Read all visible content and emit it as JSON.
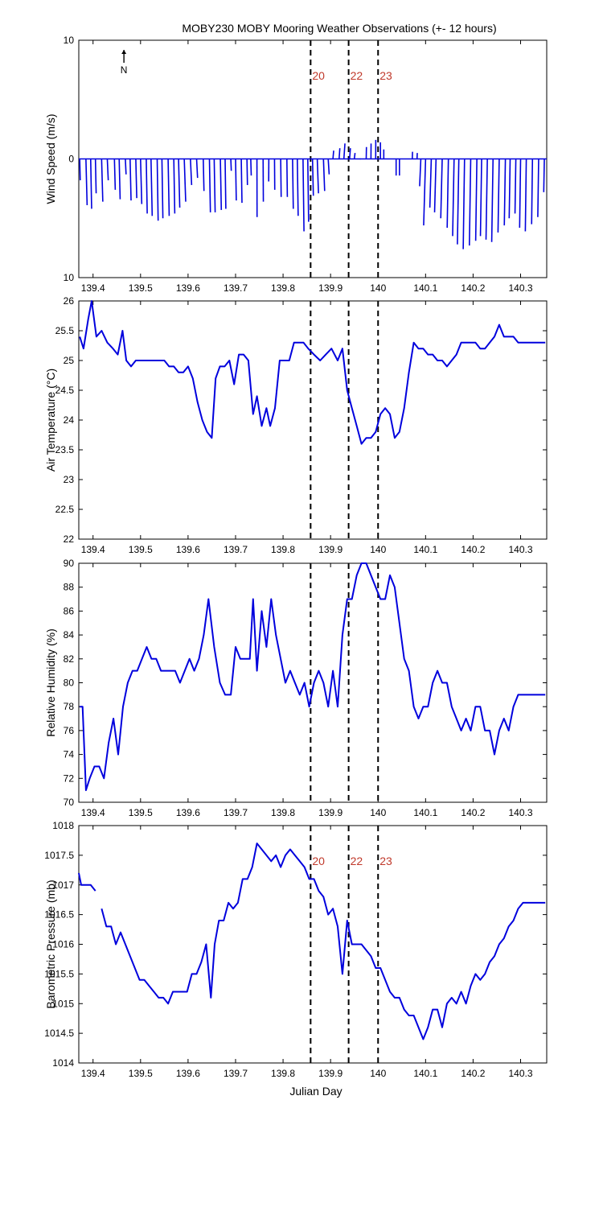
{
  "title": "MOBY230 MOBY Mooring Weather Observations (+- 12 hours)",
  "xlabel": "Julian Day",
  "north_label": "N",
  "series_color": "#0000dd",
  "event_color": "#c0392b",
  "x_ticks": [
    "139.4",
    "139.5",
    "139.6",
    "139.7",
    "139.8",
    "139.9",
    "140",
    "140.1",
    "140.2",
    "140.3"
  ],
  "events": [
    {
      "x": 139.858,
      "label": "20"
    },
    {
      "x": 139.938,
      "label": "22"
    },
    {
      "x": 140.0,
      "label": "23"
    }
  ],
  "chart_data": [
    {
      "type": "quiver",
      "ylabel": "Wind Speed (m/s)",
      "xlim": [
        139.37,
        140.355
      ],
      "ylim": [
        -10,
        10
      ],
      "y_ticks": [
        "10",
        "0",
        "10"
      ],
      "event_labels_shown": true,
      "vectors": [
        {
          "x": 139.372,
          "u": 0.02,
          "v": -1.8
        },
        {
          "x": 139.385,
          "u": 0.05,
          "v": -3.9
        },
        {
          "x": 139.395,
          "u": 0.04,
          "v": -4.2
        },
        {
          "x": 139.405,
          "u": 0.03,
          "v": -2.9
        },
        {
          "x": 139.418,
          "u": 0.05,
          "v": -3.6
        },
        {
          "x": 139.43,
          "u": 0.04,
          "v": -1.8
        },
        {
          "x": 139.445,
          "u": 0.035,
          "v": -2.6
        },
        {
          "x": 139.455,
          "u": 0.04,
          "v": -3.4
        },
        {
          "x": 139.468,
          "u": 0.03,
          "v": -1.3
        },
        {
          "x": 139.478,
          "u": 0.04,
          "v": -3.5
        },
        {
          "x": 139.49,
          "u": 0.04,
          "v": -3.3
        },
        {
          "x": 139.5,
          "u": 0.05,
          "v": -3.8
        },
        {
          "x": 139.512,
          "u": 0.04,
          "v": -4.6
        },
        {
          "x": 139.522,
          "u": 0.05,
          "v": -4.8
        },
        {
          "x": 139.535,
          "u": 0.04,
          "v": -5.2
        },
        {
          "x": 139.545,
          "u": 0.04,
          "v": -5.0
        },
        {
          "x": 139.558,
          "u": 0.045,
          "v": -4.8
        },
        {
          "x": 139.57,
          "u": 0.04,
          "v": -4.6
        },
        {
          "x": 139.58,
          "u": 0.05,
          "v": -4.1
        },
        {
          "x": 139.592,
          "u": 0.06,
          "v": -3.6
        },
        {
          "x": 139.605,
          "u": 0.05,
          "v": -2.2
        },
        {
          "x": 139.618,
          "u": 0.04,
          "v": -1.6
        },
        {
          "x": 139.632,
          "u": 0.03,
          "v": -2.7
        },
        {
          "x": 139.645,
          "u": 0.04,
          "v": -4.5
        },
        {
          "x": 139.655,
          "u": 0.04,
          "v": -4.5
        },
        {
          "x": 139.668,
          "u": 0.04,
          "v": -4.3
        },
        {
          "x": 139.678,
          "u": 0.03,
          "v": -4.2
        },
        {
          "x": 139.69,
          "u": 0.02,
          "v": -1.0
        },
        {
          "x": 139.7,
          "u": 0.03,
          "v": -3.5
        },
        {
          "x": 139.712,
          "u": 0.03,
          "v": -3.7
        },
        {
          "x": 139.724,
          "u": 0.02,
          "v": -2.2
        },
        {
          "x": 139.732,
          "u": 0.02,
          "v": -1.4
        },
        {
          "x": 139.745,
          "u": 0.005,
          "v": -4.9
        },
        {
          "x": 139.758,
          "u": 0.01,
          "v": -3.6
        },
        {
          "x": 139.77,
          "u": -0.005,
          "v": -1.9
        },
        {
          "x": 139.782,
          "u": 0.01,
          "v": -2.6
        },
        {
          "x": 139.795,
          "u": 0.02,
          "v": -3.2
        },
        {
          "x": 139.808,
          "u": 0.02,
          "v": -3.2
        },
        {
          "x": 139.82,
          "u": 0.03,
          "v": -4.2
        },
        {
          "x": 139.83,
          "u": 0.035,
          "v": -4.8
        },
        {
          "x": 139.842,
          "u": 0.04,
          "v": -6.1
        },
        {
          "x": 139.852,
          "u": 0.035,
          "v": -5.3
        },
        {
          "x": 139.862,
          "u": 0.035,
          "v": -3.1
        },
        {
          "x": 139.872,
          "u": 0.05,
          "v": -2.9
        },
        {
          "x": 139.885,
          "u": 0.05,
          "v": -2.7
        },
        {
          "x": 139.895,
          "u": 0.04,
          "v": -1.3
        },
        {
          "x": 139.905,
          "u": 0.03,
          "v": 0.7
        },
        {
          "x": 139.918,
          "u": 0.03,
          "v": 0.9
        },
        {
          "x": 139.928,
          "u": 0.045,
          "v": 1.3
        },
        {
          "x": 139.94,
          "u": 0.035,
          "v": 0.9
        },
        {
          "x": 139.95,
          "u": 0.03,
          "v": 0.5
        },
        {
          "x": 139.962,
          "u": 0.02,
          "v": 0.0
        },
        {
          "x": 139.975,
          "u": 0.01,
          "v": 1.0
        },
        {
          "x": 139.985,
          "u": 0.005,
          "v": 1.3
        },
        {
          "x": 139.995,
          "u": 0.003,
          "v": 1.6
        },
        {
          "x": 140.005,
          "u": 0.0,
          "v": 1.4
        },
        {
          "x": 140.012,
          "u": 0.0,
          "v": 0.8
        },
        {
          "x": 140.038,
          "u": 0.0,
          "v": -1.4
        },
        {
          "x": 140.045,
          "u": 0.0,
          "v": -1.4
        },
        {
          "x": 140.072,
          "u": 0.01,
          "v": 0.6
        },
        {
          "x": 140.082,
          "u": 0.01,
          "v": 0.5
        },
        {
          "x": 140.09,
          "u": -0.05,
          "v": -2.3
        },
        {
          "x": 140.1,
          "u": -0.08,
          "v": -5.6
        },
        {
          "x": 140.112,
          "u": -0.06,
          "v": -4.1
        },
        {
          "x": 140.122,
          "u": -0.06,
          "v": -4.5
        },
        {
          "x": 140.135,
          "u": -0.06,
          "v": -5.0
        },
        {
          "x": 140.148,
          "u": -0.05,
          "v": -5.8
        },
        {
          "x": 140.16,
          "u": -0.06,
          "v": -6.5
        },
        {
          "x": 140.17,
          "u": -0.06,
          "v": -7.2
        },
        {
          "x": 140.182,
          "u": -0.055,
          "v": -7.6
        },
        {
          "x": 140.195,
          "u": -0.055,
          "v": -7.3
        },
        {
          "x": 140.208,
          "u": -0.05,
          "v": -6.9
        },
        {
          "x": 140.218,
          "u": -0.05,
          "v": -6.5
        },
        {
          "x": 140.23,
          "u": -0.055,
          "v": -6.8
        },
        {
          "x": 140.242,
          "u": -0.055,
          "v": -7.0
        },
        {
          "x": 140.255,
          "u": -0.05,
          "v": -6.2
        },
        {
          "x": 140.268,
          "u": -0.045,
          "v": -5.6
        },
        {
          "x": 140.278,
          "u": -0.04,
          "v": -5.0
        },
        {
          "x": 140.29,
          "u": -0.035,
          "v": -4.6
        },
        {
          "x": 140.3,
          "u": -0.04,
          "v": -5.8
        },
        {
          "x": 140.312,
          "u": -0.04,
          "v": -6.1
        },
        {
          "x": 140.325,
          "u": -0.035,
          "v": -5.5
        },
        {
          "x": 140.338,
          "u": -0.035,
          "v": -4.9
        },
        {
          "x": 140.35,
          "u": -0.025,
          "v": -2.8
        }
      ]
    },
    {
      "type": "line",
      "ylabel": "Air Temperature (°C)",
      "xlim": [
        139.37,
        140.355
      ],
      "ylim": [
        22,
        26
      ],
      "y_ticks": [
        "22",
        "22.5",
        "23",
        "23.5",
        "24",
        "24.5",
        "25",
        "25.5",
        "26"
      ],
      "event_labels_shown": false,
      "x": [
        139.372,
        139.38,
        139.39,
        139.397,
        139.407,
        139.418,
        139.43,
        139.442,
        139.452,
        139.462,
        139.47,
        139.48,
        139.49,
        139.5,
        139.51,
        139.52,
        139.53,
        139.54,
        139.55,
        139.56,
        139.57,
        139.58,
        139.59,
        139.6,
        139.61,
        139.62,
        139.63,
        139.64,
        139.65,
        139.658,
        139.667,
        139.677,
        139.687,
        139.697,
        139.707,
        139.717,
        139.727,
        139.737,
        139.745,
        139.755,
        139.765,
        139.773,
        139.783,
        139.793,
        139.803,
        139.813,
        139.823,
        139.833,
        139.843,
        139.853,
        139.865,
        139.878,
        139.89,
        139.902,
        139.915,
        139.925,
        139.935,
        139.945,
        139.955,
        139.965,
        139.975,
        139.985,
        139.995,
        140.005,
        140.015,
        140.025,
        140.035,
        140.045,
        140.055,
        140.065,
        140.075,
        140.085,
        140.095,
        140.105,
        140.115,
        140.125,
        140.135,
        140.145,
        140.155,
        140.165,
        140.175,
        140.185,
        140.195,
        140.205,
        140.215,
        140.225,
        140.235,
        140.245,
        140.255,
        140.265,
        140.275,
        140.285,
        140.295,
        140.305,
        140.315,
        140.325,
        140.335,
        140.345,
        140.352
      ],
      "y": [
        25.4,
        25.2,
        25.7,
        26.0,
        25.4,
        25.5,
        25.3,
        25.2,
        25.1,
        25.5,
        25.0,
        24.9,
        25.0,
        25.0,
        25.0,
        25.0,
        25.0,
        25.0,
        25.0,
        24.9,
        24.9,
        24.8,
        24.8,
        24.9,
        24.7,
        24.3,
        24.0,
        23.8,
        23.7,
        24.7,
        24.9,
        24.9,
        25.0,
        24.6,
        25.1,
        25.1,
        25.0,
        24.1,
        24.4,
        23.9,
        24.2,
        23.9,
        24.2,
        25.0,
        25.0,
        25.0,
        25.3,
        25.3,
        25.3,
        25.2,
        25.1,
        25.0,
        25.1,
        25.2,
        25.0,
        25.2,
        24.5,
        24.2,
        23.9,
        23.6,
        23.7,
        23.7,
        23.8,
        24.1,
        24.2,
        24.1,
        23.7,
        23.8,
        24.2,
        24.8,
        25.3,
        25.2,
        25.2,
        25.1,
        25.1,
        25.0,
        25.0,
        24.9,
        25.0,
        25.1,
        25.3,
        25.3,
        25.3,
        25.3,
        25.2,
        25.2,
        25.3,
        25.4,
        25.6,
        25.4,
        25.4,
        25.4,
        25.3,
        25.3,
        25.3,
        25.3,
        25.3,
        25.3,
        25.3
      ]
    },
    {
      "type": "line",
      "ylabel": "Relative Humidity (%)",
      "xlim": [
        139.37,
        140.355
      ],
      "ylim": [
        70,
        90
      ],
      "y_ticks": [
        "70",
        "72",
        "74",
        "76",
        "78",
        "80",
        "82",
        "84",
        "86",
        "88",
        "90"
      ],
      "event_labels_shown": false,
      "x": [
        139.372,
        139.378,
        139.385,
        139.393,
        139.403,
        139.413,
        139.423,
        139.433,
        139.443,
        139.453,
        139.463,
        139.473,
        139.483,
        139.493,
        139.503,
        139.513,
        139.523,
        139.533,
        139.543,
        139.553,
        139.563,
        139.573,
        139.583,
        139.593,
        139.603,
        139.613,
        139.623,
        139.633,
        139.643,
        139.655,
        139.667,
        139.678,
        139.69,
        139.7,
        139.71,
        139.72,
        139.73,
        139.737,
        139.745,
        139.755,
        139.765,
        139.775,
        139.785,
        139.795,
        139.805,
        139.815,
        139.825,
        139.835,
        139.845,
        139.855,
        139.865,
        139.875,
        139.885,
        139.895,
        139.905,
        139.915,
        139.925,
        139.935,
        139.945,
        139.955,
        139.965,
        139.975,
        139.985,
        139.995,
        140.005,
        140.015,
        140.025,
        140.035,
        140.045,
        140.055,
        140.065,
        140.075,
        140.085,
        140.095,
        140.105,
        140.115,
        140.125,
        140.135,
        140.145,
        140.155,
        140.165,
        140.175,
        140.185,
        140.195,
        140.205,
        140.215,
        140.225,
        140.235,
        140.245,
        140.255,
        140.265,
        140.275,
        140.285,
        140.295,
        140.305,
        140.315,
        140.325,
        140.335,
        140.345,
        140.352
      ],
      "y": [
        78,
        78,
        71,
        72,
        73,
        73,
        72,
        75,
        77,
        74,
        78,
        80,
        81,
        81,
        82,
        83,
        82,
        82,
        81,
        81,
        81,
        81,
        80,
        81,
        82,
        81,
        82,
        84,
        87,
        83,
        80,
        79,
        79,
        83,
        82,
        82,
        82,
        87,
        81,
        86,
        83,
        87,
        84,
        82,
        80,
        81,
        80,
        79,
        80,
        78,
        80,
        81,
        80,
        78,
        81,
        78,
        84,
        87,
        87,
        89,
        90,
        90,
        89,
        88,
        87,
        87,
        89,
        88,
        85,
        82,
        81,
        78,
        77,
        78,
        78,
        80,
        81,
        80,
        80,
        78,
        77,
        76,
        77,
        76,
        78,
        78,
        76,
        76,
        74,
        76,
        77,
        76,
        78,
        79,
        79,
        79,
        79,
        79,
        79,
        79
      ],
      "note_x_count_aligned": true
    },
    {
      "type": "line",
      "ylabel": "Barometric Pressure (mb)",
      "xlim": [
        139.37,
        140.355
      ],
      "ylim": [
        1014,
        1018
      ],
      "y_ticks": [
        "1014",
        "1014.5",
        "1015",
        "1015.5",
        "1016",
        "1016.5",
        "1017",
        "1017.5",
        "1018"
      ],
      "event_labels_shown": true,
      "segments": [
        {
          "x": [
            139.37,
            139.375,
            139.385,
            139.395,
            139.405
          ],
          "y": [
            1017.2,
            1017.0,
            1017.0,
            1017.0,
            1016.9
          ]
        },
        {
          "x": [
            139.418,
            139.428,
            139.438,
            139.448,
            139.458,
            139.468,
            139.478,
            139.488,
            139.498,
            139.508,
            139.518,
            139.528,
            139.538,
            139.548,
            139.558,
            139.568,
            139.578,
            139.588,
            139.598,
            139.608,
            139.618,
            139.628,
            139.638,
            139.648,
            139.656,
            139.665,
            139.675,
            139.685,
            139.695,
            139.705,
            139.715,
            139.725,
            139.735,
            139.745,
            139.755,
            139.765,
            139.775,
            139.785,
            139.795,
            139.805,
            139.815,
            139.825,
            139.835,
            139.845,
            139.855,
            139.865,
            139.875,
            139.885,
            139.895,
            139.905,
            139.915,
            139.925,
            139.935,
            139.945,
            139.955,
            139.965,
            139.975,
            139.985,
            139.995,
            140.005,
            140.015,
            140.025,
            140.035,
            140.045,
            140.055,
            140.065,
            140.075,
            140.085,
            140.095,
            140.105,
            140.115,
            140.125,
            140.135,
            140.145,
            140.155,
            140.165,
            140.175,
            140.185,
            140.195,
            140.205,
            140.215,
            140.225,
            140.235,
            140.245,
            140.255,
            140.265,
            140.275,
            140.285,
            140.295,
            140.305,
            140.315,
            140.325,
            140.335,
            140.345,
            140.352
          ],
          "y": [
            1016.6,
            1016.3,
            1016.3,
            1016.0,
            1016.2,
            1016.0,
            1015.8,
            1015.6,
            1015.4,
            1015.4,
            1015.3,
            1015.2,
            1015.1,
            1015.1,
            1015.0,
            1015.2,
            1015.2,
            1015.2,
            1015.2,
            1015.5,
            1015.5,
            1015.7,
            1016.0,
            1015.1,
            1016.0,
            1016.4,
            1016.4,
            1016.7,
            1016.6,
            1016.7,
            1017.1,
            1017.1,
            1017.3,
            1017.7,
            1017.6,
            1017.5,
            1017.4,
            1017.5,
            1017.3,
            1017.5,
            1017.6,
            1017.5,
            1017.4,
            1017.3,
            1017.1,
            1017.1,
            1016.9,
            1016.8,
            1016.5,
            1016.6,
            1016.3,
            1015.5,
            1016.4,
            1016.0,
            1016.0,
            1016.0,
            1015.9,
            1015.8,
            1015.6,
            1015.6,
            1015.4,
            1015.2,
            1015.1,
            1015.1,
            1014.9,
            1014.8,
            1014.8,
            1014.6,
            1014.4,
            1014.6,
            1014.9,
            1014.9,
            1014.6,
            1015.0,
            1015.1,
            1015.0,
            1015.2,
            1015.0,
            1015.3,
            1015.5,
            1015.4,
            1015.5,
            1015.7,
            1015.8,
            1016.0,
            1016.1,
            1016.3,
            1016.4,
            1016.6,
            1016.7,
            1016.7,
            1016.7,
            1016.7,
            1016.7,
            1016.7
          ]
        }
      ]
    }
  ]
}
